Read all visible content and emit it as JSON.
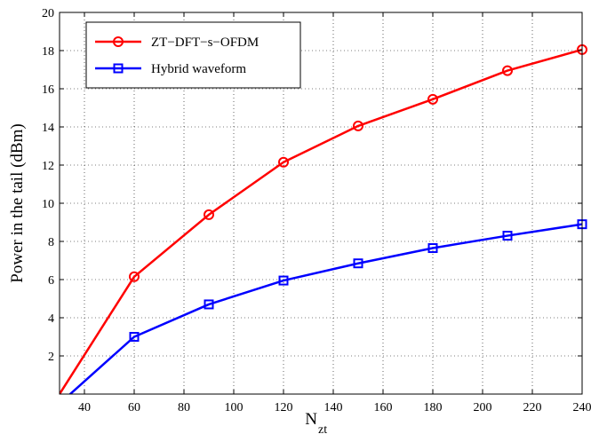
{
  "chart_data": {
    "type": "line",
    "xlabel": "N",
    "xlabel_subscript": "zt",
    "ylabel": "Power in the tail (dBm)",
    "xlim": [
      30,
      240
    ],
    "ylim": [
      0,
      20
    ],
    "xticks": [
      40,
      60,
      80,
      100,
      120,
      140,
      160,
      180,
      200,
      220,
      240
    ],
    "yticks": [
      2,
      4,
      6,
      8,
      10,
      12,
      14,
      16,
      18,
      20
    ],
    "grid": true,
    "legend_position": "top-left",
    "series": [
      {
        "name": "ZT−DFT−s−OFDM",
        "color": "#ff0000",
        "marker": "circle",
        "x": [
          30,
          60,
          90,
          120,
          150,
          180,
          210,
          240
        ],
        "y": [
          0.0,
          6.15,
          9.4,
          12.15,
          14.05,
          15.45,
          16.95,
          18.05
        ]
      },
      {
        "name": "Hybrid waveform",
        "color": "#0000ff",
        "marker": "square",
        "x": [
          30,
          60,
          90,
          120,
          150,
          180,
          210,
          240
        ],
        "y": [
          -0.5,
          3.0,
          4.7,
          5.95,
          6.85,
          7.65,
          8.3,
          8.9
        ]
      }
    ]
  }
}
